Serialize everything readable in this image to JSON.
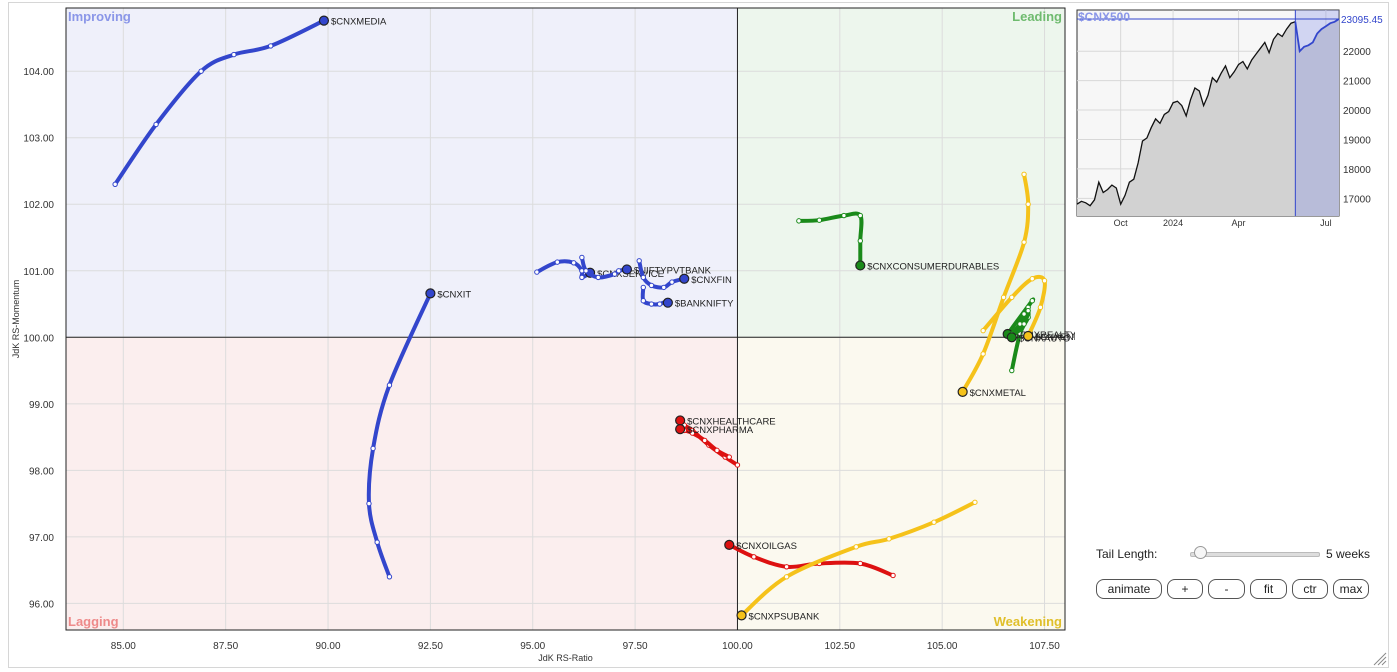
{
  "chart_data": [
    {
      "type": "scatter",
      "subtype": "relative-rotation-graph",
      "xlabel": "JdK RS-Ratio",
      "ylabel": "JdK RS-Momentum",
      "xlim": [
        83.6,
        108.0
      ],
      "ylim": [
        95.6,
        104.95
      ],
      "x_ticks": [
        "85.00",
        "87.50",
        "90.00",
        "92.50",
        "95.00",
        "97.50",
        "100.00",
        "102.50",
        "105.00",
        "107.50"
      ],
      "y_ticks": [
        "96.00",
        "97.00",
        "98.00",
        "99.00",
        "100.00",
        "101.00",
        "102.00",
        "103.00",
        "104.00"
      ],
      "center": [
        100,
        100
      ],
      "grid": true,
      "quadrants": {
        "improving": {
          "label": "Improving",
          "color": "#8a96e8",
          "bg": "#eff0fa"
        },
        "leading": {
          "label": "Leading",
          "color": "#6fbb6f",
          "bg": "#edf6ed"
        },
        "lagging": {
          "label": "Lagging",
          "color": "#ee8a8a",
          "bg": "#fbeeee"
        },
        "weakening": {
          "label": "Weakening",
          "color": "#e0bf2a",
          "bg": "#fbf9ef"
        }
      },
      "series": [
        {
          "name": "$CNXMEDIA",
          "color": "#3346cc",
          "tail": [
            [
              84.8,
              102.3
            ],
            [
              85.8,
              103.2
            ],
            [
              86.9,
              104.0
            ],
            [
              87.7,
              104.25
            ],
            [
              88.6,
              104.38
            ],
            [
              89.9,
              104.76
            ]
          ]
        },
        {
          "name": "$CNXIT",
          "color": "#3346cc",
          "tail": [
            [
              91.5,
              96.4
            ],
            [
              91.2,
              96.92
            ],
            [
              91.0,
              97.5
            ],
            [
              91.1,
              98.33
            ],
            [
              91.5,
              99.28
            ],
            [
              92.5,
              100.66
            ]
          ]
        },
        {
          "name": "$CNXSERVICE",
          "color": "#3346cc",
          "tail": [
            [
              95.1,
              100.98
            ],
            [
              95.6,
              101.13
            ],
            [
              96.0,
              101.12
            ],
            [
              96.2,
              101.0
            ],
            [
              96.2,
              100.9
            ],
            [
              96.4,
              100.97
            ]
          ]
        },
        {
          "name": "$NIFTYPVTBANK",
          "color": "#3346cc",
          "tail": [
            [
              96.2,
              101.2
            ],
            [
              96.3,
              101.0
            ],
            [
              96.6,
              100.9
            ],
            [
              97.0,
              100.95
            ],
            [
              97.1,
              101.0
            ],
            [
              97.3,
              101.02
            ]
          ]
        },
        {
          "name": "$CNXFIN",
          "color": "#3346cc",
          "tail": [
            [
              97.6,
              101.15
            ],
            [
              97.7,
              100.9
            ],
            [
              97.9,
              100.78
            ],
            [
              98.2,
              100.75
            ],
            [
              98.4,
              100.83
            ],
            [
              98.7,
              100.88
            ]
          ]
        },
        {
          "name": "$BANKNIFTY",
          "color": "#3346cc",
          "tail": [
            [
              97.7,
              100.75
            ],
            [
              97.7,
              100.55
            ],
            [
              97.9,
              100.5
            ],
            [
              98.1,
              100.5
            ],
            [
              98.3,
              100.55
            ],
            [
              98.3,
              100.52
            ]
          ]
        },
        {
          "name": "$CNXCONSUMERDURABLES",
          "color": "#1a8a1a",
          "tail": [
            [
              101.5,
              101.75
            ],
            [
              102.0,
              101.76
            ],
            [
              102.6,
              101.83
            ],
            [
              103.0,
              101.83
            ],
            [
              103.0,
              101.45
            ],
            [
              103.0,
              101.08
            ]
          ]
        },
        {
          "name": "$CNXREALTY",
          "color": "#1a8a1a",
          "tail": [
            [
              106.7,
              99.5
            ],
            [
              106.9,
              100.05
            ],
            [
              107.1,
              100.3
            ],
            [
              107.1,
              100.45
            ],
            [
              107.2,
              100.55
            ],
            [
              106.6,
              100.05
            ]
          ]
        },
        {
          "name": "$CNXAUTO",
          "color": "#1a8a1a",
          "tail": [
            [
              106.7,
              100.05
            ],
            [
              106.9,
              100.2
            ],
            [
              107.0,
              100.35
            ],
            [
              107.1,
              100.4
            ],
            [
              107.0,
              100.2
            ],
            [
              106.7,
              100.0
            ]
          ]
        },
        {
          "name": "$CNXMETAL",
          "color": "#f5c21a",
          "tail": [
            [
              107.0,
              102.45
            ],
            [
              107.1,
              102.0
            ],
            [
              107.0,
              101.43
            ],
            [
              106.5,
              100.6
            ],
            [
              106.0,
              99.75
            ],
            [
              105.5,
              99.18
            ]
          ]
        },
        {
          "name": "$CNXENERGY",
          "color": "#f5c21a",
          "tail": [
            [
              106.0,
              100.1
            ],
            [
              106.7,
              100.6
            ],
            [
              107.2,
              100.88
            ],
            [
              107.5,
              100.85
            ],
            [
              107.4,
              100.45
            ],
            [
              107.1,
              100.02
            ]
          ]
        },
        {
          "name": "$CNXHEALTHCARE",
          "color": "#dd1111",
          "tail": [
            [
              100.0,
              98.08
            ],
            [
              99.7,
              98.2
            ],
            [
              99.3,
              98.38
            ],
            [
              98.9,
              98.6
            ],
            [
              98.7,
              98.68
            ],
            [
              98.6,
              98.75
            ]
          ]
        },
        {
          "name": "$CNXPHARMA",
          "color": "#dd1111",
          "tail": [
            [
              99.8,
              98.2
            ],
            [
              99.5,
              98.3
            ],
            [
              99.2,
              98.45
            ],
            [
              98.9,
              98.56
            ],
            [
              98.7,
              98.6
            ],
            [
              98.6,
              98.62
            ]
          ]
        },
        {
          "name": "$CNXOILGAS",
          "color": "#dd1111",
          "tail": [
            [
              103.8,
              96.42
            ],
            [
              103.0,
              96.6
            ],
            [
              102.0,
              96.6
            ],
            [
              101.2,
              96.55
            ],
            [
              100.4,
              96.7
            ],
            [
              99.8,
              96.88
            ]
          ]
        },
        {
          "name": "$CNXPSUBANK",
          "color": "#f5c21a",
          "tail": [
            [
              105.8,
              97.52
            ],
            [
              104.8,
              97.22
            ],
            [
              103.7,
              96.97
            ],
            [
              102.9,
              96.85
            ],
            [
              101.2,
              96.4
            ],
            [
              100.1,
              95.82
            ]
          ]
        }
      ]
    },
    {
      "type": "area",
      "title": "$CNX500",
      "last_value_label": "23095.45",
      "x_ticks": [
        "Oct",
        "2024",
        "Apr",
        "Jul"
      ],
      "y_ticks": [
        "17000",
        "18000",
        "19000",
        "20000",
        "21000",
        "22000"
      ],
      "ylim": [
        16400,
        23400
      ],
      "highlight_from_index": 50,
      "values": [
        16800,
        16900,
        16850,
        16750,
        16950,
        17550,
        17200,
        17300,
        17450,
        17350,
        16800,
        17100,
        17550,
        17650,
        18200,
        18950,
        19050,
        19400,
        19700,
        19550,
        19850,
        19950,
        20250,
        20300,
        20150,
        19800,
        20350,
        20750,
        20650,
        20150,
        20500,
        21100,
        20950,
        21250,
        21500,
        21100,
        21300,
        21550,
        21650,
        21400,
        21700,
        21900,
        22100,
        22300,
        21950,
        22400,
        22600,
        22500,
        22750,
        22950,
        23000,
        22000,
        22150,
        22200,
        22300,
        22600,
        22750,
        22850,
        22950,
        23000,
        23095
      ]
    }
  ],
  "controls": {
    "tail_length_label": "Tail Length:",
    "tail_length_value": "5 weeks",
    "tail_length_weeks": 5,
    "tail_length_max_weeks": 52,
    "buttons": {
      "animate": "animate",
      "plus": "+",
      "minus": "-",
      "fit": "fit",
      "ctr": "ctr",
      "max": "max"
    }
  }
}
